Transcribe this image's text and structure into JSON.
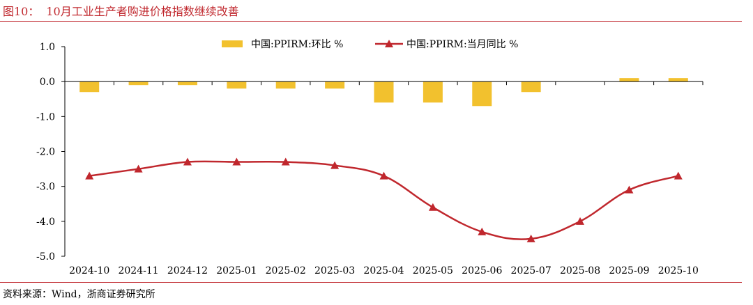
{
  "header": {
    "figure_label": "图10：",
    "title": "10月工业生产者购进价格指数继续改善"
  },
  "footer": {
    "source": "资料来源：Wind，浙商证券研究所"
  },
  "colors": {
    "title": "#c0272d",
    "bar": "#f2c12e",
    "line": "#c0272d",
    "axis": "#000000"
  },
  "chart_data": {
    "type": "bar",
    "title": "10月工业生产者购进价格指数继续改善",
    "xlabel": "",
    "ylabel": "",
    "ylim": [
      -5.0,
      1.0
    ],
    "yticks": [
      "1.0",
      "0.0",
      "-1.0",
      "-2.0",
      "-3.0",
      "-4.0",
      "-5.0"
    ],
    "ytick_values": [
      1,
      0,
      -1,
      -2,
      -3,
      -4,
      -5
    ],
    "categories": [
      "2024-10",
      "2024-11",
      "2024-12",
      "2025-01",
      "2025-02",
      "2025-03",
      "2025-04",
      "2025-05",
      "2025-06",
      "2025-07",
      "2025-08",
      "2025-09",
      "2025-10"
    ],
    "legend_position": "top-center",
    "series": [
      {
        "name": "中国:PPIRM:环比 %",
        "kind": "bar",
        "values": [
          -0.3,
          -0.1,
          -0.1,
          -0.2,
          -0.2,
          -0.2,
          -0.6,
          -0.6,
          -0.7,
          -0.3,
          0.0,
          0.1,
          0.1
        ]
      },
      {
        "name": "中国:PPIRM:当月同比 %",
        "kind": "line",
        "marker": "triangle",
        "values": [
          -2.7,
          -2.5,
          -2.3,
          -2.3,
          -2.3,
          -2.4,
          -2.7,
          -3.6,
          -4.3,
          -4.5,
          -4.0,
          -3.1,
          -2.7
        ]
      }
    ]
  }
}
